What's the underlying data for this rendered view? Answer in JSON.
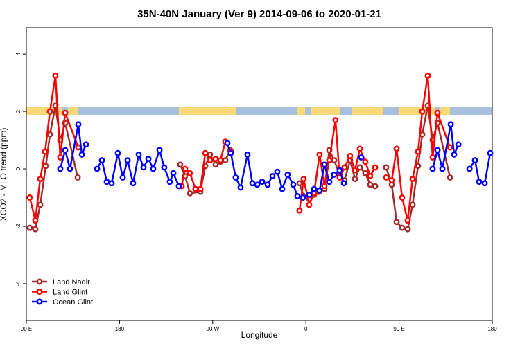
{
  "chart_data": {
    "type": "line",
    "title": "35N-40N January (Ver 9)   2014-09-06 to 2020-01-21",
    "x_label": "Longitude",
    "y_label": "XCO2 - MLO trend (ppm)",
    "xlim": [
      90,
      540
    ],
    "ylim": [
      -5.28,
      4.92
    ],
    "xticks": [
      {
        "value": 90,
        "label": "90 E"
      },
      180,
      {
        "value": 270,
        "label": "90 W"
      },
      {
        "value": 360,
        "label": "0"
      },
      {
        "value": 450,
        "label": "90 E"
      },
      {
        "value": 540,
        "label": "180"
      }
    ],
    "yticks": [
      -4,
      -2,
      0,
      2,
      4
    ],
    "legend": "bottom-left",
    "series": [
      {
        "name": "Land Nadir",
        "color": "#a52a2a",
        "x": [
          93.3,
          98.7,
          103.4,
          108.8,
          112.8,
          118.1,
          122.8,
          127.5,
          139.6,
          null,
          238.6,
          243.3,
          248,
          258.1,
          262.8,
          267.4,
          272.8,
          277.5,
          282.2,
          286.9,
          null,
          353.8,
          357.8,
          363.2,
          367.9,
          372.5,
          377.9,
          382.6,
          387.3,
          392.6,
          397.3,
          402.7,
          407.4,
          412.1,
          417.4,
          422.1,
          426.8,
          null,
          437.5,
          442.9,
          447.6,
          452.9,
          458.3,
          463,
          468.3,
          472.4,
          477.7,
          482.4,
          487.1,
          499.2
        ],
        "values": [
          -2.05,
          -2.1,
          -1.25,
          0.1,
          1.2,
          2.2,
          1.0,
          1.6,
          -0.3,
          null,
          0.15,
          -0.25,
          -0.85,
          -0.8,
          0.1,
          0.5,
          0.15,
          0.25,
          0.3,
          0.65,
          null,
          -0.5,
          -0.95,
          -1.05,
          -0.9,
          -0.8,
          -0.7,
          0.65,
          0.3,
          -0.2,
          -0.4,
          0.3,
          -0.35,
          0.05,
          -0.15,
          -0.55,
          -0.6,
          null,
          0.05,
          -0.55,
          -1.85,
          -2.05,
          -2.1,
          -1.25,
          0.1,
          1.2,
          2.2,
          1.0,
          1.6,
          -0.3
        ]
      },
      {
        "name": "Land Glint",
        "color": "#ff0000",
        "x": [
          93.3,
          98.7,
          103.4,
          108.1,
          112.8,
          118.1,
          122.8,
          127.5,
          140.2,
          null,
          240,
          243.3,
          248,
          253.4,
          258.1,
          262.8,
          267.4,
          272.8,
          277.5,
          282.2,
          287.5,
          null,
          353.8,
          357.8,
          363.2,
          367.9,
          373.2,
          377.9,
          382.6,
          388.6,
          392.6,
          397.3,
          402.7,
          407.4,
          412.1,
          417.4,
          422.1,
          426.8,
          null,
          437.5,
          442.9,
          447.6,
          452.9,
          458.3,
          463,
          468.3,
          472.4,
          477.7,
          482.4,
          487.1,
          499.2
        ],
        "values": [
          -1.0,
          -1.8,
          -0.35,
          0.6,
          2.0,
          3.25,
          0.4,
          1.95,
          0.75,
          null,
          -0.6,
          0.0,
          -0.15,
          -0.7,
          -0.7,
          0.55,
          0.3,
          0.35,
          0.3,
          0.95,
          0.6,
          null,
          -1.45,
          -0.35,
          -1.25,
          -0.85,
          0.5,
          -0.6,
          0.3,
          1.7,
          -0.3,
          0.05,
          0.45,
          -0.05,
          0.7,
          0.25,
          -0.25,
          0.05,
          null,
          -0.3,
          -0.4,
          0.7,
          -1.0,
          -1.8,
          -0.35,
          0.6,
          2.0,
          3.25,
          0.4,
          1.95,
          0.75
        ]
      },
      {
        "name": "Ocean Glint",
        "color": "#0000ff",
        "x": [
          122.8,
          127.5,
          132.2,
          140.2,
          143.6,
          147.6,
          null,
          158.3,
          163,
          167.7,
          172.4,
          178.4,
          183.1,
          187.8,
          193.1,
          198.5,
          203.2,
          207.9,
          212.5,
          218.6,
          223.2,
          228.6,
          232,
          237.3,
          null,
          284.2,
          287.5,
          292.2,
          296.9,
          303.6,
          308.3,
          313,
          317.7,
          323,
          327.7,
          332.4,
          337.1,
          342.4,
          347.8,
          351.8,
          357.2,
          363.2,
          367.9,
          373.2,
          377.9,
          382.6,
          387.3,
          392.6,
          396.7,
          null,
          413.4,
          null,
          482.4,
          487.1,
          491.8,
          499.9,
          503.2,
          507.3,
          null,
          518,
          523.3,
          527.3,
          532.7,
          538
        ],
        "values": [
          0.0,
          0.65,
          0.0,
          1.55,
          0.5,
          0.85,
          null,
          0.0,
          0.3,
          -0.45,
          -0.5,
          0.55,
          -0.3,
          0.3,
          -0.5,
          0.5,
          0.05,
          0.35,
          0.0,
          0.65,
          0.05,
          -0.45,
          -0.15,
          -0.6,
          null,
          0.9,
          0.55,
          -0.3,
          -0.65,
          0.5,
          -0.5,
          -0.55,
          -0.45,
          -0.55,
          -0.25,
          -0.1,
          -0.7,
          -0.2,
          -0.55,
          -0.95,
          -1.0,
          -0.9,
          -0.7,
          -0.75,
          0.15,
          -0.45,
          -0.2,
          -0.05,
          -0.5,
          null,
          0.4,
          null,
          0.0,
          0.65,
          0.0,
          1.55,
          0.5,
          0.85,
          null,
          0.0,
          0.3,
          -0.45,
          -0.5,
          0.55
        ]
      }
    ]
  }
}
